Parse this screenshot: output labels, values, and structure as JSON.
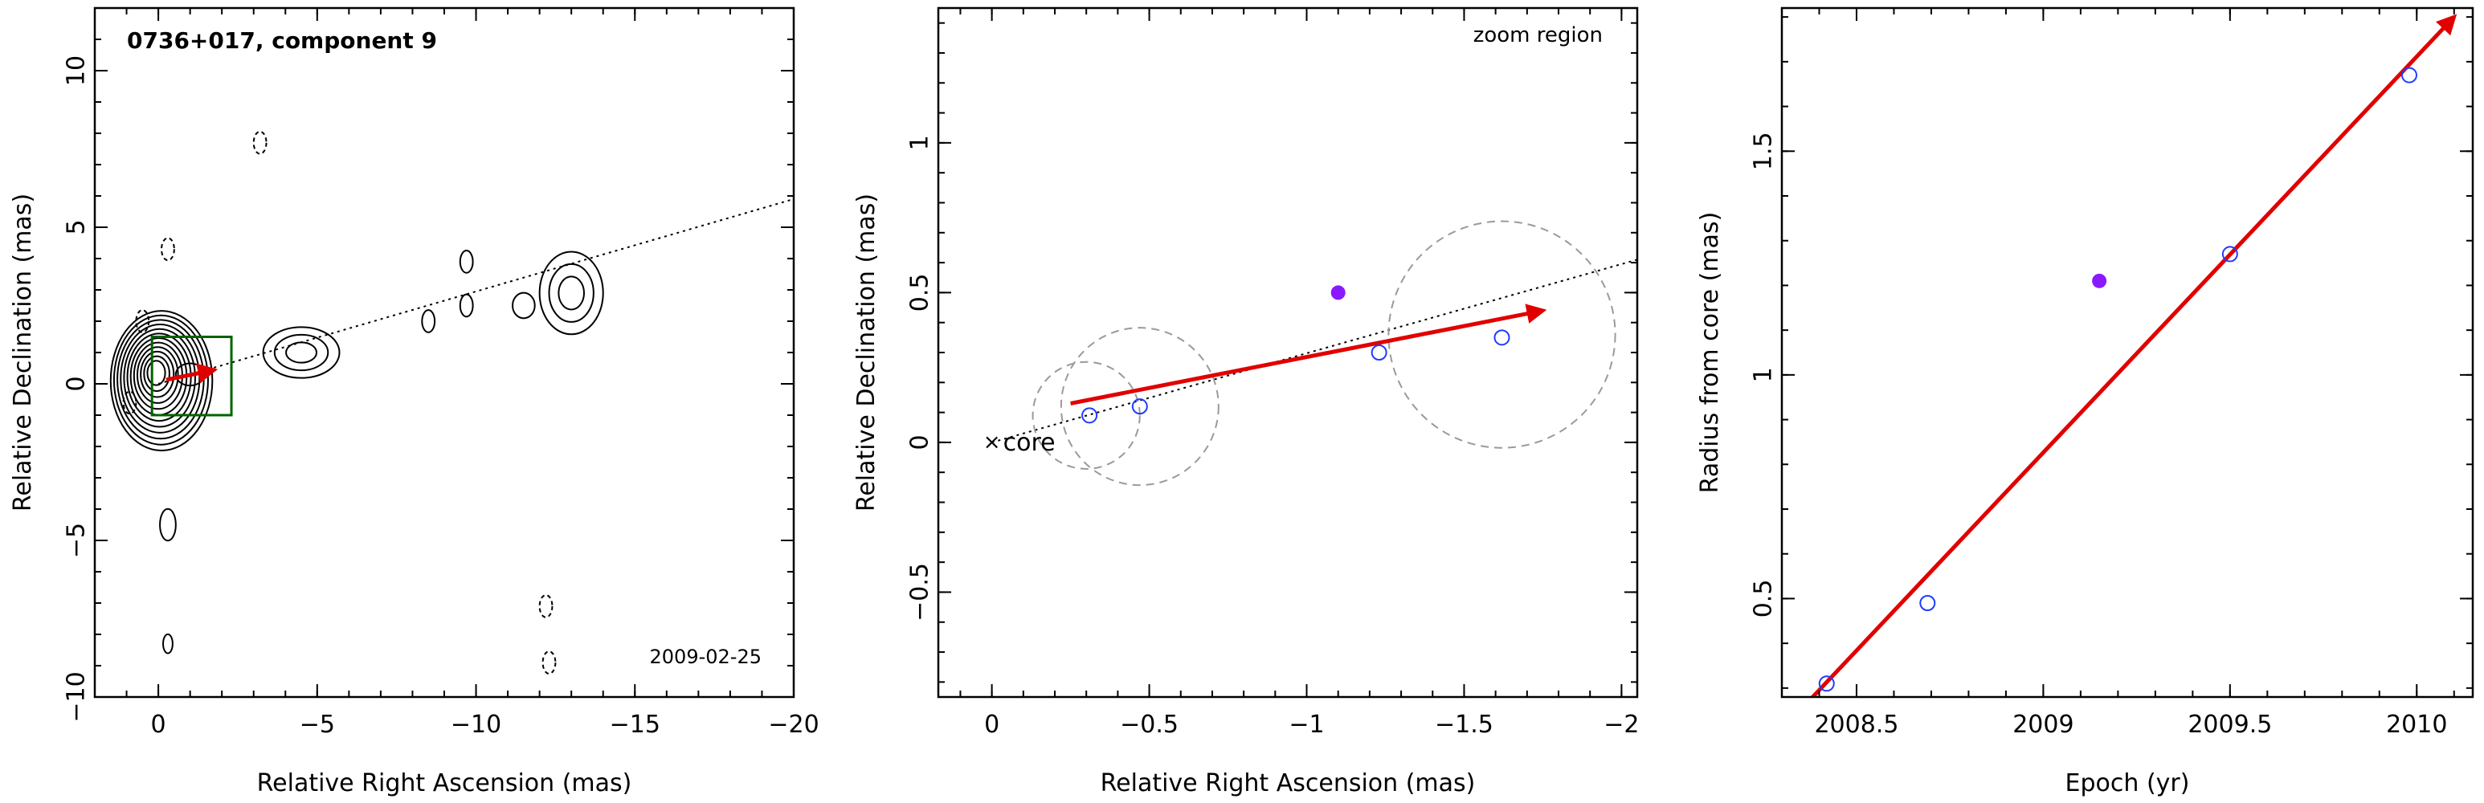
{
  "colors": {
    "axes": "#000000",
    "arrow": "#e10000",
    "points_open": "#1f3cff",
    "point_filled": "#8a19ff",
    "grey_circles": "#9a9a9a",
    "box": "#006400"
  },
  "chart_data": [
    {
      "type": "contour",
      "title": "0736+017, component 9",
      "date_label": "2009-02-25",
      "xlabel": "Relative Right Ascension (mas)",
      "ylabel": "Relative Declination (mas)",
      "xlim": [
        2,
        -20
      ],
      "ylim": [
        -10,
        12
      ],
      "xticks": [
        0,
        -5,
        -10,
        -15,
        -20
      ],
      "xtick_labels": [
        "0",
        "−5",
        "−10",
        "−15",
        "−20"
      ],
      "yticks": [
        -10,
        -5,
        0,
        5,
        10
      ],
      "ytick_labels": [
        "−10",
        "−5",
        "0",
        "5",
        "10"
      ],
      "ridge_line": {
        "x": [
          0,
          -20
        ],
        "y": [
          0,
          5.9
        ]
      },
      "components": [
        {
          "x": -1.0,
          "y": 0.3,
          "rx": 0.45,
          "ry": 0.35
        },
        {
          "x": -4.5,
          "y": 1.0,
          "rx": 1.2,
          "ry": 0.8
        },
        {
          "x": -8.5,
          "y": 2.0,
          "rx": 0.2,
          "ry": 0.35
        },
        {
          "x": -9.7,
          "y": 2.5,
          "rx": 0.2,
          "ry": 0.35
        },
        {
          "x": -9.7,
          "y": 3.9,
          "rx": 0.2,
          "ry": 0.35
        },
        {
          "x": -11.5,
          "y": 2.5,
          "rx": 0.35,
          "ry": 0.4
        },
        {
          "x": -13.0,
          "y": 2.9,
          "rx": 1.0,
          "ry": 1.3
        },
        {
          "x": -0.3,
          "y": -4.5,
          "rx": 0.25,
          "ry": 0.5
        },
        {
          "x": -0.3,
          "y": -8.3,
          "rx": 0.15,
          "ry": 0.3
        }
      ],
      "zoom_box": {
        "x": [
          0.2,
          -2.3
        ],
        "y": [
          -1.0,
          1.5
        ]
      },
      "arrow": {
        "x": [
          -0.25,
          -1.75
        ],
        "y": [
          0.13,
          0.44
        ]
      }
    },
    {
      "type": "scatter",
      "annotation": "zoom region",
      "core_label": "core",
      "xlabel": "Relative Right Ascension (mas)",
      "ylabel": "Relative Declination (mas)",
      "xlim": [
        0.17,
        -2.05
      ],
      "ylim": [
        -0.85,
        1.45
      ],
      "xticks": [
        0,
        -0.5,
        -1,
        -1.5,
        -2
      ],
      "xtick_labels": [
        "0",
        "−0.5",
        "−1",
        "−1.5",
        "−2"
      ],
      "yticks": [
        -0.5,
        0,
        0.5,
        1
      ],
      "ytick_labels": [
        "−0.5",
        "0",
        "0.5",
        "1"
      ],
      "ridge_line": {
        "x": [
          0,
          -2.05
        ],
        "y": [
          0,
          0.61
        ]
      },
      "points": [
        {
          "x": -0.31,
          "y": 0.09,
          "filled": false
        },
        {
          "x": -0.47,
          "y": 0.12,
          "filled": false
        },
        {
          "x": -1.23,
          "y": 0.3,
          "filled": false
        },
        {
          "x": -1.62,
          "y": 0.35,
          "filled": false
        },
        {
          "x": -1.1,
          "y": 0.5,
          "filled": true
        }
      ],
      "uncertainty_circles": [
        {
          "x": -0.3,
          "y": 0.09,
          "r": 0.17
        },
        {
          "x": -0.47,
          "y": 0.12,
          "r": 0.25
        },
        {
          "x": -1.62,
          "y": 0.36,
          "r": 0.36
        }
      ],
      "arrow": {
        "x": [
          -0.25,
          -1.75
        ],
        "y": [
          0.13,
          0.44
        ]
      }
    },
    {
      "type": "scatter",
      "xlabel": "Epoch (yr)",
      "ylabel": "Radius from core (mas)",
      "xlim": [
        2008.3,
        2010.15
      ],
      "ylim": [
        0.28,
        1.82
      ],
      "xticks": [
        2008.5,
        2009,
        2009.5,
        2010
      ],
      "xtick_labels": [
        "2008.5",
        "2009",
        "2009.5",
        "2010"
      ],
      "yticks": [
        0.5,
        1,
        1.5
      ],
      "ytick_labels": [
        "0.5",
        "1",
        "1.5"
      ],
      "points": [
        {
          "x": 2008.42,
          "y": 0.31,
          "filled": false
        },
        {
          "x": 2008.69,
          "y": 0.49,
          "filled": false
        },
        {
          "x": 2009.5,
          "y": 1.27,
          "filled": false
        },
        {
          "x": 2009.98,
          "y": 1.67,
          "filled": false
        },
        {
          "x": 2009.15,
          "y": 1.21,
          "filled": true
        }
      ],
      "fit_arrow": {
        "x": [
          2008.36,
          2010.1
        ],
        "y": [
          0.26,
          1.8
        ]
      }
    }
  ]
}
